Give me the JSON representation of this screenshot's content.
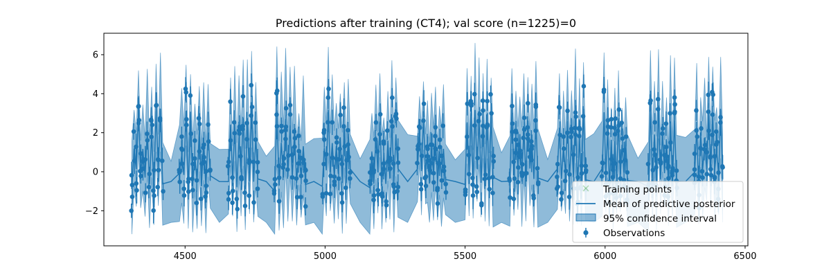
{
  "chart_data": {
    "type": "line",
    "title": "Predictions after training (CT4); val score (n=1225)=0",
    "xlabel": "",
    "ylabel": "",
    "xlim": [
      4210,
      6510
    ],
    "ylim": [
      -3.8,
      7.1
    ],
    "xticks": [
      4500,
      5000,
      5500,
      6000,
      6500
    ],
    "yticks": [
      -2,
      0,
      2,
      4,
      6
    ],
    "grid": false,
    "legend_position": "lower-right",
    "colors": {
      "main": "#1f77b4",
      "band": "#1f77b4",
      "training": "#2ca02c"
    },
    "series": [
      {
        "name": "Training points",
        "marker": "x",
        "values": []
      },
      {
        "name": "Mean of predictive posterior",
        "style": "line"
      },
      {
        "name": "95% confidence interval",
        "style": "band"
      },
      {
        "name": "Observations",
        "style": "errorbar"
      }
    ],
    "segments": [
      {
        "x": [
          4310,
          4420
        ]
      },
      {
        "x": [
          4480,
          4590
        ]
      },
      {
        "x": [
          4655,
          4760
        ]
      },
      {
        "x": [
          4820,
          4930
        ]
      },
      {
        "x": [
          4990,
          5090
        ]
      },
      {
        "x": [
          5160,
          5260
        ]
      },
      {
        "x": [
          5330,
          5430
        ]
      },
      {
        "x": [
          5500,
          5600
        ]
      },
      {
        "x": [
          5660,
          5760
        ]
      },
      {
        "x": [
          5830,
          5930
        ]
      },
      {
        "x": [
          5990,
          6080
        ]
      },
      {
        "x": [
          6155,
          6255
        ]
      },
      {
        "x": [
          6320,
          6420
        ]
      }
    ],
    "observations_y_range": [
      -2.0,
      4.7
    ],
    "band_y_range": [
      -3.2,
      6.6
    ]
  }
}
